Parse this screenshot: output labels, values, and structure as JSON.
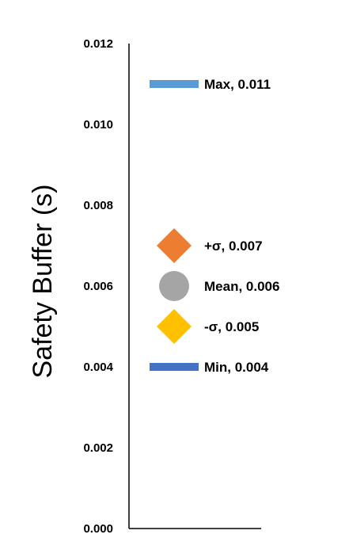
{
  "chart_data": {
    "type": "scatter",
    "title": "",
    "xlabel": "",
    "ylabel": "Safety Buffer (s)",
    "ylim": [
      0,
      0.012
    ],
    "yticks": [
      "0.000",
      "0.002",
      "0.004",
      "0.006",
      "0.008",
      "0.010",
      "0.012"
    ],
    "grid": false,
    "legend": "none",
    "points": [
      {
        "label": "Max",
        "value": 0.011,
        "text": "Max, 0.011",
        "marker": "bar",
        "color": "#5B9BD5"
      },
      {
        "label": "+σ",
        "value": 0.007,
        "text": "+σ, 0.007",
        "marker": "diamond",
        "color": "#ED7D31"
      },
      {
        "label": "Mean",
        "value": 0.006,
        "text": "Mean, 0.006",
        "marker": "circle",
        "color": "#A5A5A5"
      },
      {
        "label": "-σ",
        "value": 0.005,
        "text": "-σ, 0.005",
        "marker": "diamond",
        "color": "#FFC000"
      },
      {
        "label": "Min",
        "value": 0.004,
        "text": "Min, 0.004",
        "marker": "bar",
        "color": "#4472C4"
      }
    ]
  }
}
